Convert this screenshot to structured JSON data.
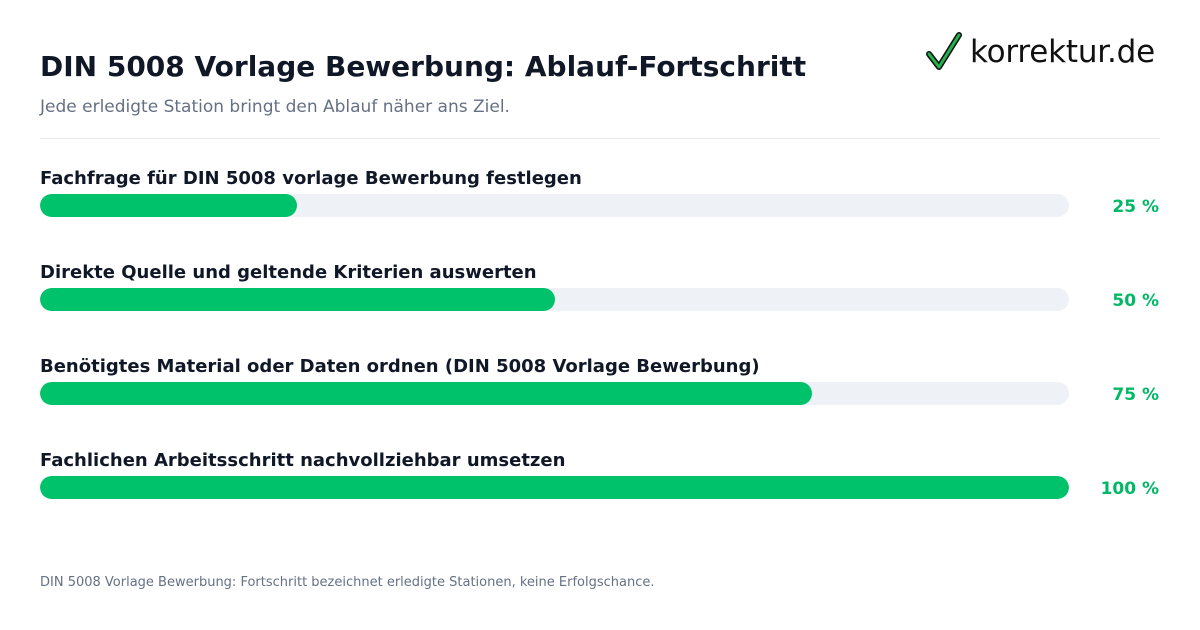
{
  "header": {
    "title": "DIN 5008 Vorlage Bewerbung: Ablauf-Fortschritt",
    "subtitle": "Jede erledigte Station bringt den Ablauf näher ans Ziel."
  },
  "logo": {
    "text": "korrektur.de",
    "icon": "checkmark-icon",
    "check_color": "#22b14c"
  },
  "footnote": "DIN 5008 Vorlage Bewerbung: Fortschritt bezeichnet erledigte Stationen, keine Erfolgschance.",
  "colors": {
    "bar_fill": "#00c26a",
    "bar_track": "#eef2f6",
    "percent_text": "#00b865"
  },
  "chart_data": {
    "type": "bar",
    "orientation": "horizontal",
    "categories": [
      "Fachfrage für DIN 5008 vorlage Bewerbung festlegen",
      "Direkte Quelle und geltende Kriterien auswerten",
      "Benötigtes Material oder Daten ordnen (DIN 5008 Vorlage Bewerbung)",
      "Fachlichen Arbeitsschritt nachvollziehbar umsetzen"
    ],
    "values": [
      25,
      50,
      75,
      100
    ],
    "value_labels": [
      "25 %",
      "50 %",
      "75 %",
      "100 %"
    ],
    "xlim": [
      0,
      100
    ]
  }
}
